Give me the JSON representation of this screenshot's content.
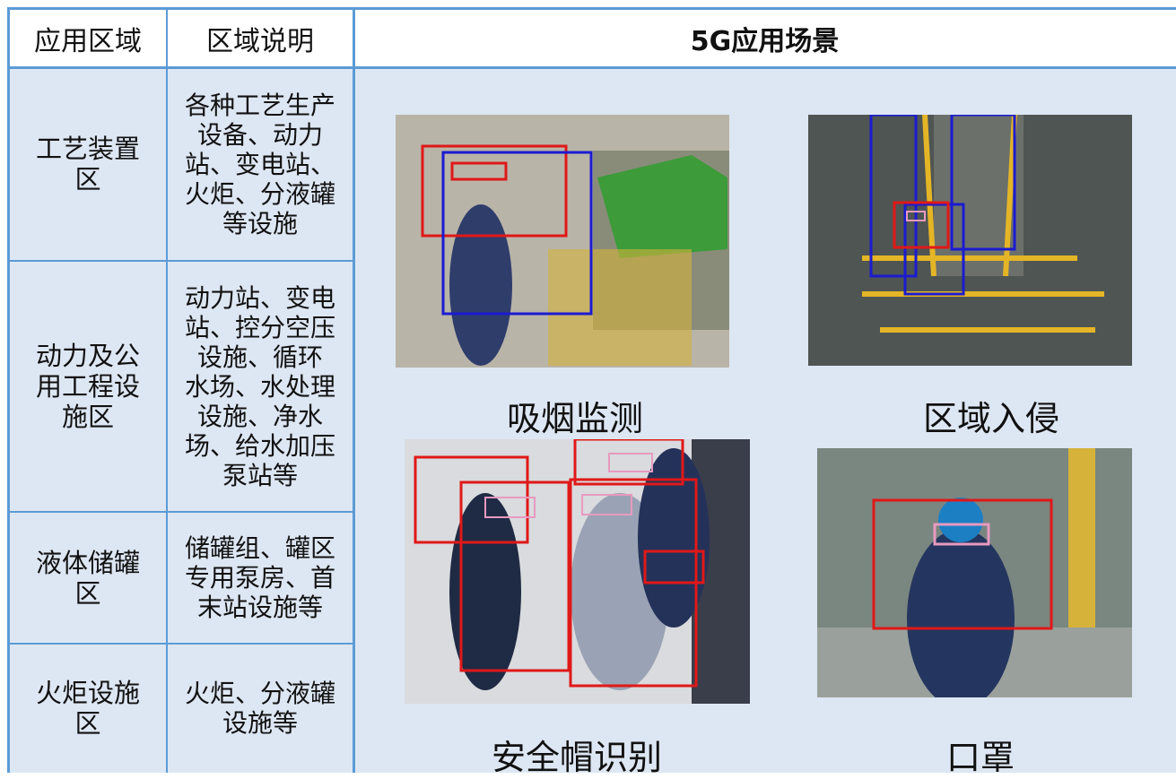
{
  "table": {
    "header": [
      "应用区域",
      "区域说明",
      "5G应用场景"
    ],
    "rows": [
      [
        "工艺装置区",
        "各种工艺生产设备、动力站、变电站、火炬、分液罐等设施"
      ],
      [
        "动力及公用工程设施区",
        "动力站、变电站、控分空压设施、循环 水场、水处理设施、净水场、给水加压 泵站等"
      ],
      [
        "液体储罐区",
        "储罐组、罐区专用泵房、首末站设施等"
      ],
      [
        "火炬设施区",
        "火炬、分液罐设施等"
      ]
    ],
    "scenes": [
      "吸烟监测",
      "区域入侵",
      "安全帽识别",
      "口罩"
    ]
  }
}
